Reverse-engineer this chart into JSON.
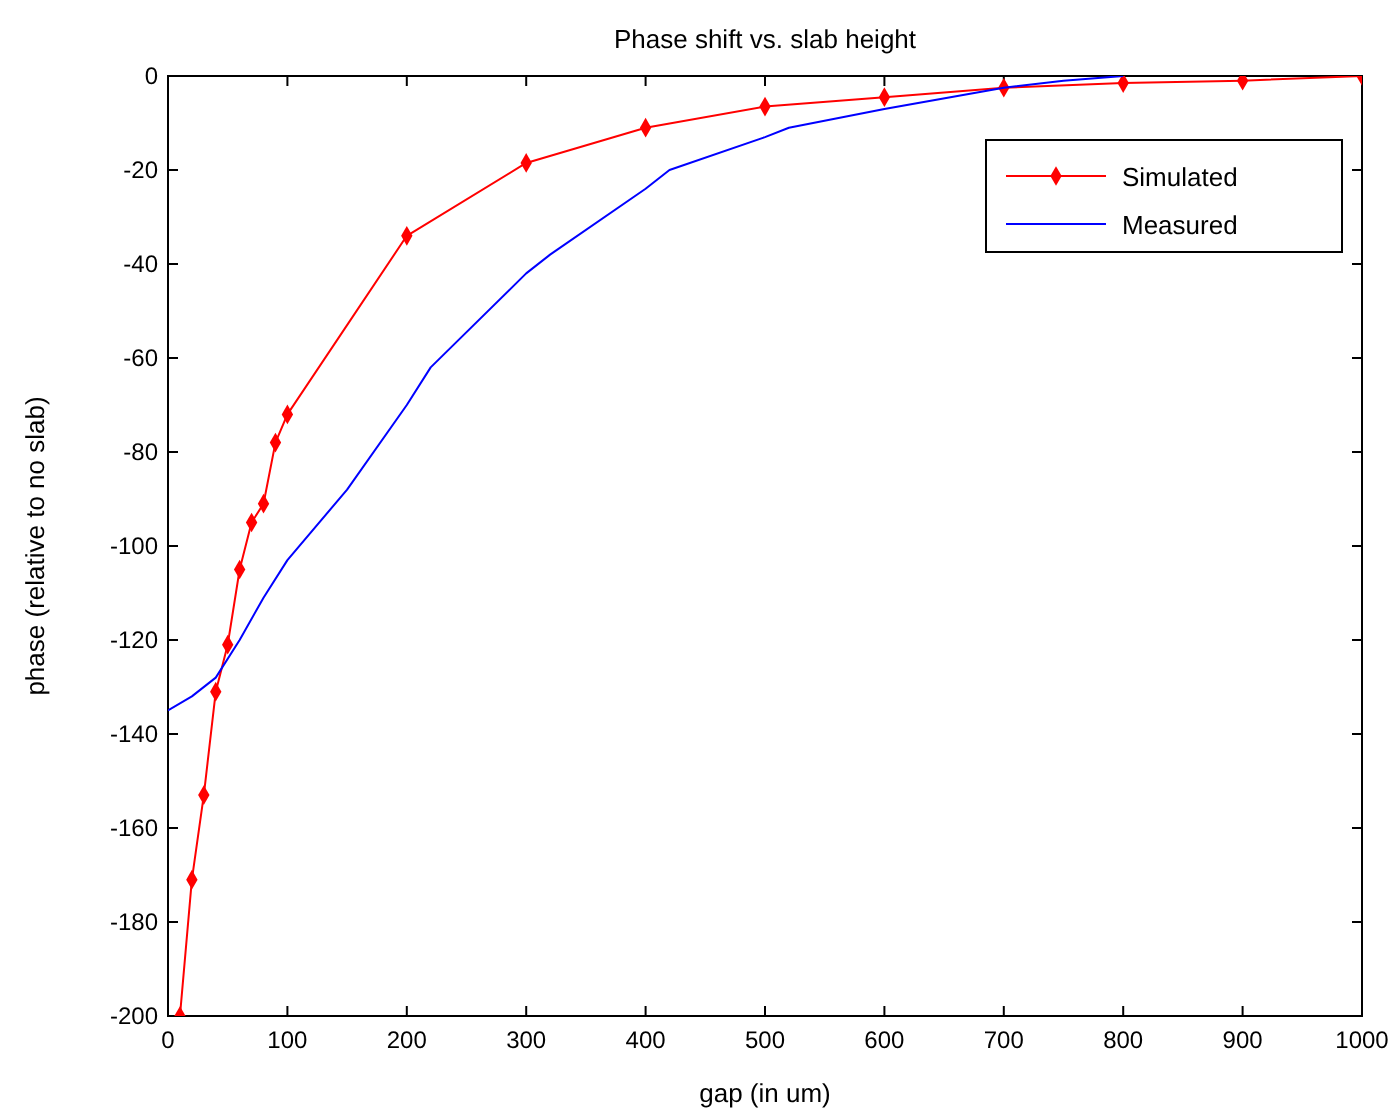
{
  "chart_data": {
    "type": "line",
    "title": "Phase shift vs. slab height",
    "xlabel": "gap (in um)",
    "ylabel": "phase (relative to no slab)",
    "xlim": [
      0,
      1000
    ],
    "xticks": [
      0,
      100,
      200,
      300,
      400,
      500,
      600,
      700,
      800,
      900,
      1000
    ],
    "ylim": [
      -200,
      0
    ],
    "yticks": [
      -200,
      -180,
      -160,
      -140,
      -120,
      -100,
      -80,
      -60,
      -40,
      -20,
      0
    ],
    "legend": "top right",
    "series": [
      {
        "name": "Simulated",
        "color": "#ff0000",
        "marker": "diamond",
        "x": [
          10,
          20,
          30,
          40,
          50,
          60,
          70,
          80,
          90,
          100,
          200,
          300,
          400,
          500,
          600,
          700,
          800,
          900,
          1000
        ],
        "values": [
          -200,
          -171,
          -153,
          -131,
          -121,
          -105,
          -95,
          -91,
          -78,
          -72,
          -34,
          -18.5,
          -11,
          -6.5,
          -4.5,
          -2.5,
          -1.5,
          -1,
          0
        ]
      },
      {
        "name": "Measured",
        "color": "#0000ff",
        "marker": "none",
        "x": [
          0,
          20,
          40,
          60,
          80,
          100,
          150,
          200,
          220,
          300,
          320,
          400,
          420,
          500,
          520,
          600,
          700,
          750,
          800
        ],
        "values": [
          -135,
          -132,
          -128,
          -120,
          -111,
          -103,
          -88,
          -70,
          -62,
          -42,
          -38,
          -24,
          -20,
          -13,
          -11,
          -7,
          -2.5,
          -1,
          0
        ]
      }
    ]
  }
}
